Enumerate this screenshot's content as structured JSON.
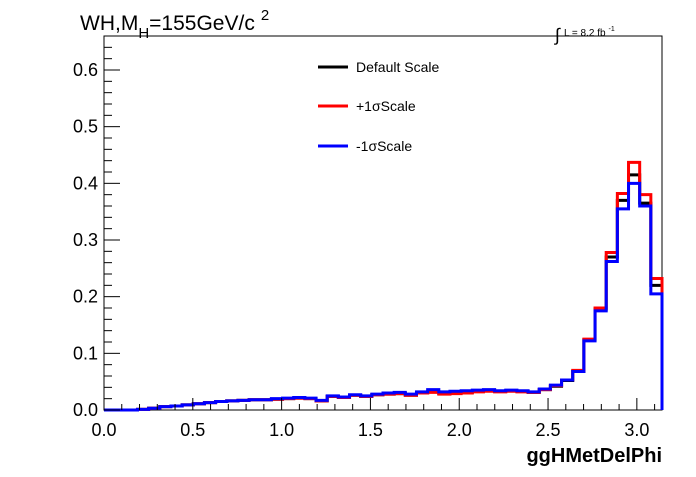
{
  "chart_data": {
    "type": "line",
    "title": {
      "main": "WH,M",
      "sub": "H",
      "unit": "=155GeV/c",
      "sup": "2"
    },
    "lumi": {
      "symbol": "∫",
      "text": "L = 8.2 fb",
      "sup": "-1"
    },
    "xlabel": "ggHMetDelPhi",
    "ylabel": "",
    "xlim": [
      0,
      3.1416
    ],
    "ylim": [
      0,
      0.66
    ],
    "x_ticks": [
      "0.0",
      "0.5",
      "1.0",
      "1.5",
      "2.0",
      "2.5",
      "3.0"
    ],
    "x_tick_values": [
      0.0,
      0.5,
      1.0,
      1.5,
      2.0,
      2.5,
      3.0
    ],
    "y_ticks": [
      "0.0",
      "0.1",
      "0.2",
      "0.3",
      "0.4",
      "0.5",
      "0.6"
    ],
    "y_tick_values": [
      0.0,
      0.1,
      0.2,
      0.3,
      0.4,
      0.5,
      0.6
    ],
    "legend_position": "top-center",
    "bins": 50,
    "series": [
      {
        "name": "Default Scale",
        "color": "#000000",
        "values": [
          0.0,
          0.0,
          0.0,
          0.001,
          0.003,
          0.006,
          0.007,
          0.009,
          0.011,
          0.013,
          0.015,
          0.016,
          0.017,
          0.018,
          0.018,
          0.019,
          0.02,
          0.021,
          0.02,
          0.016,
          0.024,
          0.022,
          0.026,
          0.024,
          0.027,
          0.028,
          0.029,
          0.026,
          0.03,
          0.032,
          0.029,
          0.03,
          0.031,
          0.033,
          0.035,
          0.033,
          0.034,
          0.033,
          0.031,
          0.036,
          0.042,
          0.052,
          0.068,
          0.124,
          0.178,
          0.27,
          0.37,
          0.415,
          0.365,
          0.22
        ]
      },
      {
        "name": "+1σScale",
        "color": "#ff0000",
        "values": [
          0.0,
          0.0,
          0.0,
          0.001,
          0.003,
          0.006,
          0.007,
          0.009,
          0.011,
          0.013,
          0.015,
          0.016,
          0.017,
          0.018,
          0.018,
          0.019,
          0.02,
          0.021,
          0.02,
          0.016,
          0.024,
          0.022,
          0.026,
          0.024,
          0.027,
          0.028,
          0.029,
          0.026,
          0.03,
          0.031,
          0.028,
          0.029,
          0.03,
          0.032,
          0.033,
          0.032,
          0.033,
          0.032,
          0.031,
          0.036,
          0.043,
          0.053,
          0.07,
          0.125,
          0.18,
          0.278,
          0.382,
          0.437,
          0.38,
          0.232
        ]
      },
      {
        "name": "-1σScale",
        "color": "#0000ff",
        "values": [
          0.0,
          0.0,
          0.0,
          0.001,
          0.003,
          0.006,
          0.007,
          0.009,
          0.011,
          0.013,
          0.015,
          0.016,
          0.017,
          0.018,
          0.018,
          0.02,
          0.021,
          0.022,
          0.021,
          0.017,
          0.025,
          0.023,
          0.027,
          0.025,
          0.028,
          0.03,
          0.031,
          0.028,
          0.032,
          0.036,
          0.032,
          0.033,
          0.034,
          0.035,
          0.036,
          0.034,
          0.035,
          0.034,
          0.032,
          0.037,
          0.044,
          0.053,
          0.068,
          0.122,
          0.175,
          0.262,
          0.355,
          0.4,
          0.36,
          0.205
        ]
      }
    ]
  }
}
